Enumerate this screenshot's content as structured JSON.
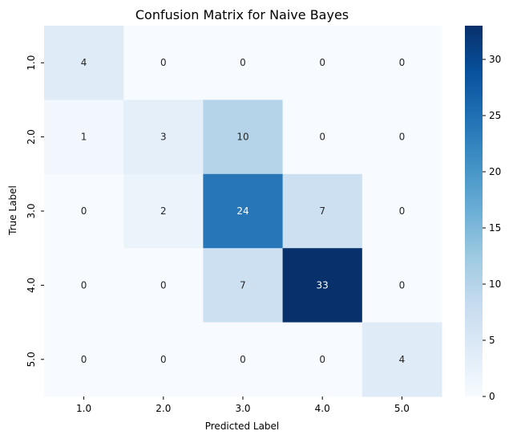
{
  "chart_data": {
    "type": "heatmap",
    "title": "Confusion Matrix for Naive Bayes",
    "xlabel": "Predicted Label",
    "ylabel": "True Label",
    "x_categories": [
      "1.0",
      "2.0",
      "3.0",
      "4.0",
      "5.0"
    ],
    "y_categories": [
      "1.0",
      "2.0",
      "3.0",
      "4.0",
      "5.0"
    ],
    "values": [
      [
        4,
        0,
        0,
        0,
        0
      ],
      [
        1,
        3,
        10,
        0,
        0
      ],
      [
        0,
        2,
        24,
        7,
        0
      ],
      [
        0,
        0,
        7,
        33,
        0
      ],
      [
        0,
        0,
        0,
        0,
        4
      ]
    ],
    "colorbar": {
      "range": [
        0,
        33
      ],
      "ticks": [
        0,
        5,
        10,
        15,
        20,
        25,
        30
      ]
    },
    "colormap": "Blues",
    "colormap_stops": [
      "#f7fbff",
      "#deebf7",
      "#c6dbef",
      "#9ecae1",
      "#6baed6",
      "#4292c6",
      "#2171b5",
      "#08519c",
      "#08306b"
    ],
    "annotations": true
  }
}
